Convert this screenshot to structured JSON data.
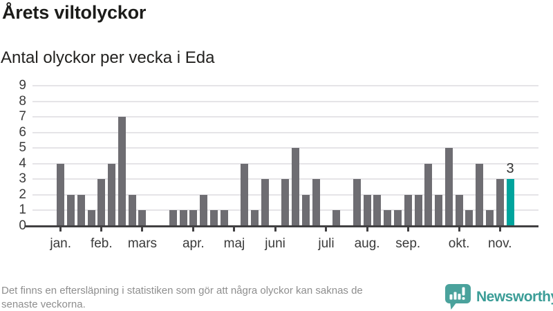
{
  "header": {
    "title": "Årets viltolyckor",
    "subtitle": "Antal olyckor per vecka i Eda"
  },
  "chart_data": {
    "type": "bar",
    "title": "Årets viltolyckor",
    "subtitle": "Antal olyckor per vecka i Eda",
    "x_unit": "vecka",
    "first_week": 1,
    "last_week": 45,
    "values": [
      4,
      2,
      2,
      1,
      3,
      4,
      7,
      2,
      1,
      0,
      0,
      1,
      1,
      1,
      2,
      1,
      1,
      0,
      4,
      1,
      3,
      0,
      3,
      5,
      2,
      3,
      0,
      1,
      0,
      3,
      2,
      2,
      1,
      1,
      2,
      2,
      4,
      2,
      5,
      2,
      1,
      4,
      1,
      3,
      3
    ],
    "highlight_week": 45,
    "value_labels": [
      {
        "week": 45,
        "text": "3"
      }
    ],
    "yticks": [
      0,
      1,
      2,
      3,
      4,
      5,
      6,
      7,
      8,
      9
    ],
    "ylim": [
      0,
      9
    ],
    "grid": true,
    "month_ticks": [
      {
        "label": "jan.",
        "week": 1
      },
      {
        "label": "feb.",
        "week": 5
      },
      {
        "label": "mars",
        "week": 9
      },
      {
        "label": "apr.",
        "week": 14
      },
      {
        "label": "maj",
        "week": 18
      },
      {
        "label": "juni",
        "week": 22
      },
      {
        "label": "juli",
        "week": 27
      },
      {
        "label": "aug.",
        "week": 31
      },
      {
        "label": "sep.",
        "week": 35
      },
      {
        "label": "okt.",
        "week": 40
      },
      {
        "label": "nov.",
        "week": 44
      }
    ],
    "colors": {
      "bar": "#6e6d72",
      "highlight": "#00a49d",
      "gridline": "#e5e4e7",
      "axis": "#414042",
      "tick_label": "#3a3a3a",
      "value_label": "#333333"
    }
  },
  "footer": {
    "disclaimer_lines": [
      "Det finns en eftersläpning i statistiken som gör att några olyckor kan saknas de",
      "senaste veckorna."
    ],
    "brand": "Newsworthy",
    "brand_color": "#3b9d97",
    "icon_color": "#4aa29c"
  }
}
